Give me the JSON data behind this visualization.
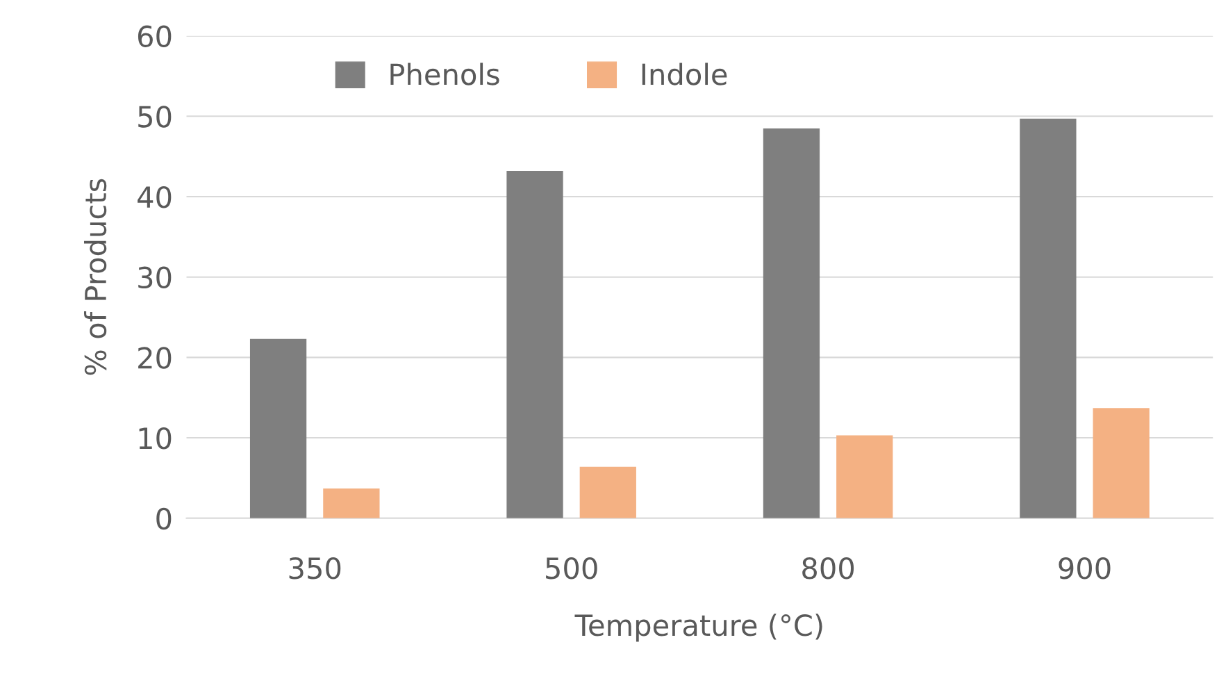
{
  "chart_data": {
    "type": "bar",
    "xlabel": "Temperature (°C)",
    "ylabel": "% of Products",
    "categories": [
      "350",
      "500",
      "800",
      "900"
    ],
    "series": [
      {
        "name": "Phenols",
        "color": "#7f7f7f",
        "values": [
          22.3,
          43.2,
          48.5,
          49.7
        ]
      },
      {
        "name": "Indole",
        "color": "#f4b183",
        "values": [
          3.7,
          6.4,
          10.3,
          13.7
        ]
      }
    ],
    "ylim": [
      0,
      60
    ],
    "yticks": [
      0,
      10,
      20,
      30,
      40,
      50,
      60
    ],
    "grid": "y",
    "legend": "top left"
  }
}
